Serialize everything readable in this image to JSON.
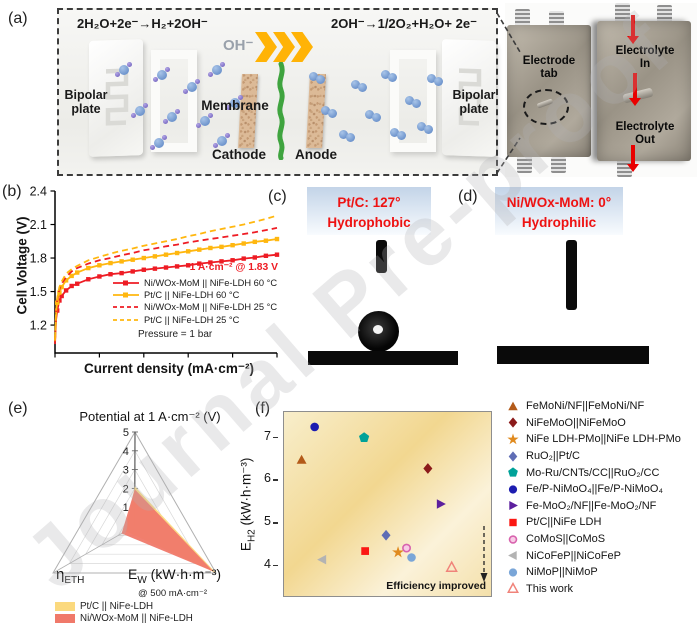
{
  "watermark": "Journal Pre-proof",
  "panel_a": {
    "label": "(a)",
    "reaction_left": "2H₂O+2e⁻→H₂+2OH⁻",
    "reaction_right": "2OH⁻→1/2O₂+H₂O+ 2e⁻",
    "oh_label": "OH⁻",
    "bipolar_left": "Bipolar plate",
    "bipolar_right": "Bipolar plate",
    "membrane_label": "Membrane",
    "cathode_label": "Cathode",
    "anode_label": "Anode",
    "photo": {
      "electrode_tab": "Electrode tab",
      "electrolyte_in": "Electrolyte In",
      "electrolyte_out": "Electrolyte Out"
    }
  },
  "panel_b": {
    "label": "(b)",
    "ylabel": "Cell Voltage (V)",
    "xlabel": "Current density (mA·cm⁻²)",
    "annotation": "1 A·cm⁻² @ 1.83 V",
    "pressure_note": "Pressure = 1 bar",
    "chart_data": {
      "type": "line",
      "xlim": [
        0,
        1000
      ],
      "ylim": [
        0.95,
        2.4
      ],
      "xticks": [
        0,
        200,
        400,
        600,
        800,
        1000
      ],
      "yticks": [
        1.2,
        1.5,
        1.8,
        2.1,
        2.4
      ],
      "x": [
        0,
        5,
        10,
        20,
        30,
        50,
        75,
        100,
        150,
        200,
        250,
        300,
        350,
        400,
        450,
        500,
        550,
        600,
        650,
        700,
        750,
        800,
        850,
        900,
        950,
        1000
      ],
      "series": [
        {
          "name": "Ni/WOx-MoM || NiFe-LDH 60 °C",
          "color": "#ee1c24",
          "style": "solid",
          "marker": true,
          "values": [
            1.03,
            1.25,
            1.33,
            1.42,
            1.46,
            1.51,
            1.55,
            1.57,
            1.61,
            1.635,
            1.655,
            1.665,
            1.68,
            1.695,
            1.705,
            1.715,
            1.725,
            1.735,
            1.75,
            1.76,
            1.77,
            1.78,
            1.795,
            1.805,
            1.82,
            1.83
          ]
        },
        {
          "name": "Pt/C || NiFe-LDH 60 °C",
          "color": "#ffb70f",
          "style": "solid",
          "marker": true,
          "values": [
            1.05,
            1.3,
            1.4,
            1.49,
            1.54,
            1.6,
            1.64,
            1.67,
            1.71,
            1.735,
            1.755,
            1.77,
            1.785,
            1.8,
            1.815,
            1.83,
            1.845,
            1.86,
            1.875,
            1.89,
            1.9,
            1.915,
            1.93,
            1.945,
            1.955,
            1.97
          ]
        },
        {
          "name": "Ni/WOx-MoM || NiFe-LDH 25 °C",
          "color": "#ee1c24",
          "style": "dashed",
          "marker": false,
          "values": [
            1.05,
            1.32,
            1.43,
            1.52,
            1.57,
            1.63,
            1.68,
            1.71,
            1.75,
            1.78,
            1.8,
            1.825,
            1.845,
            1.87,
            1.885,
            1.905,
            1.92,
            1.94,
            1.955,
            1.97,
            1.985,
            2.0,
            2.015,
            2.03,
            2.05,
            2.07
          ]
        },
        {
          "name": "Pt/C || NiFe-LDH 25 °C",
          "color": "#ffb70f",
          "style": "dashed",
          "marker": false,
          "values": [
            1.06,
            1.33,
            1.44,
            1.54,
            1.59,
            1.66,
            1.7,
            1.73,
            1.78,
            1.81,
            1.84,
            1.865,
            1.885,
            1.91,
            1.93,
            1.95,
            1.97,
            1.995,
            2.015,
            2.04,
            2.06,
            2.08,
            2.1,
            2.125,
            2.15,
            2.18
          ]
        }
      ]
    }
  },
  "panel_c": {
    "label": "(c)",
    "title_line1": "Pt/C: 127°",
    "title_line2": "Hydrophobic"
  },
  "panel_d": {
    "label": "(d)",
    "title_line1": "Ni/WOx-MoM: 0°",
    "title_line2": "Hydrophilic"
  },
  "panel_e": {
    "label": "(e)",
    "title": "Potential at 1 A·cm⁻² (V)",
    "axis_eta": {
      "main": "η",
      "sub": "ETH"
    },
    "axis_ew": {
      "main": "E",
      "sub": "W",
      "rest": " (kW·h·m⁻³)"
    },
    "axis_ew_note": "@ 500 mA·cm⁻²",
    "chart_data": {
      "type": "radar",
      "axes": [
        "Potential at 1 A·cm⁻² (V)",
        "ηETH",
        "EW (kW·h·m⁻³) @ 500 mA·cm⁻²"
      ],
      "scale_max": 5,
      "ticks": [
        1,
        2,
        3,
        4,
        5
      ],
      "series": [
        {
          "name": "Pt/C || NiFe-LDH",
          "color": "#fbd97e",
          "values": [
            2.1,
            0.55,
            5.0
          ]
        },
        {
          "name": "Ni/WOx-MoM || NiFe-LDH",
          "color": "#f0796a",
          "values": [
            1.95,
            0.8,
            4.85
          ]
        }
      ]
    }
  },
  "panel_f": {
    "label": "(f)",
    "ylabel": {
      "main": "E",
      "sub": "H2",
      "rest": " (kW·h·m⁻³)"
    },
    "annotation": "Efficiency improved",
    "chart_data": {
      "type": "scatter",
      "ylim": [
        3.3,
        7.6
      ],
      "yticks": [
        4,
        5,
        6,
        7
      ],
      "points": [
        {
          "label": "FeMoNi/NF||FeMoNi/NF",
          "marker": "triangle-up",
          "color": "#b35a19",
          "x": 0.085,
          "y": 6.48
        },
        {
          "label": "NiFeMoO||NiFeMoO",
          "marker": "diamond",
          "color": "#8b1a1a",
          "x": 0.695,
          "y": 6.28
        },
        {
          "label": "NiFe LDH-PMo||NiFe LDH-PMo",
          "marker": "star",
          "color": "#e08a1e",
          "x": 0.551,
          "y": 4.32
        },
        {
          "label": "RuO₂||Pt/C",
          "marker": "diamond",
          "color": "#5f6db5",
          "x": 0.493,
          "y": 4.72
        },
        {
          "label": "Mo-Ru/CNTs/CC||RuO₂/CC",
          "marker": "pentagon",
          "color": "#00a299",
          "x": 0.387,
          "y": 7.0
        },
        {
          "label": "Fe/P-NiMoO₄||Fe/P-NiMoO₄",
          "marker": "circle",
          "color": "#1c1cb0",
          "x": 0.148,
          "y": 7.25
        },
        {
          "label": "Fe-MoO₂/NF||Fe-MoO₂/NF",
          "marker": "triangle-right",
          "color": "#5c1f9e",
          "x": 0.757,
          "y": 5.45
        },
        {
          "label": "Pt/C||NiFe LDH",
          "marker": "square",
          "color": "#fb1813",
          "x": 0.392,
          "y": 4.35
        },
        {
          "label": "CoMoS||CoMoS",
          "marker": "circle-ring",
          "color": "#d863ae",
          "fill": "#f8cce6",
          "x": 0.592,
          "y": 4.42
        },
        {
          "label": "NiCoFeP||NiCoFeP",
          "marker": "triangle-left",
          "color": "#b3b3b3",
          "x": 0.185,
          "y": 4.15
        },
        {
          "label": "NiMoP||NiMoP",
          "marker": "circle",
          "color": "#7aa6d8",
          "x": 0.616,
          "y": 4.2
        },
        {
          "label": "This work",
          "marker": "triangle-open",
          "color": "#f0837a",
          "x": 0.81,
          "y": 3.97
        }
      ]
    }
  }
}
